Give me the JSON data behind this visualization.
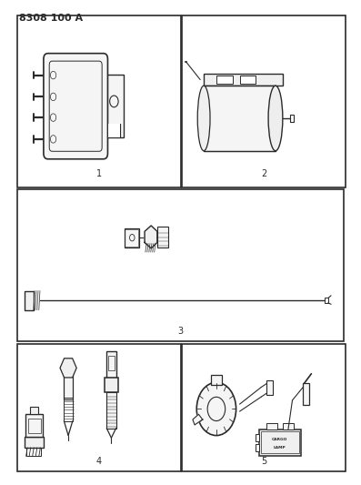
{
  "title": "8308 100 A",
  "bg": "#ffffff",
  "lc": "#2a2a2a",
  "figsize": [
    3.97,
    5.33
  ],
  "dpi": 100,
  "title_fs": 8,
  "label_fs": 7,
  "cells": {
    "c1": [
      0.045,
      0.615,
      0.455,
      0.355
    ],
    "c2": [
      0.505,
      0.615,
      0.455,
      0.355
    ],
    "c3": [
      0.045,
      0.295,
      0.91,
      0.315
    ],
    "c4": [
      0.045,
      0.025,
      0.455,
      0.265
    ],
    "c5": [
      0.505,
      0.025,
      0.455,
      0.265
    ]
  }
}
